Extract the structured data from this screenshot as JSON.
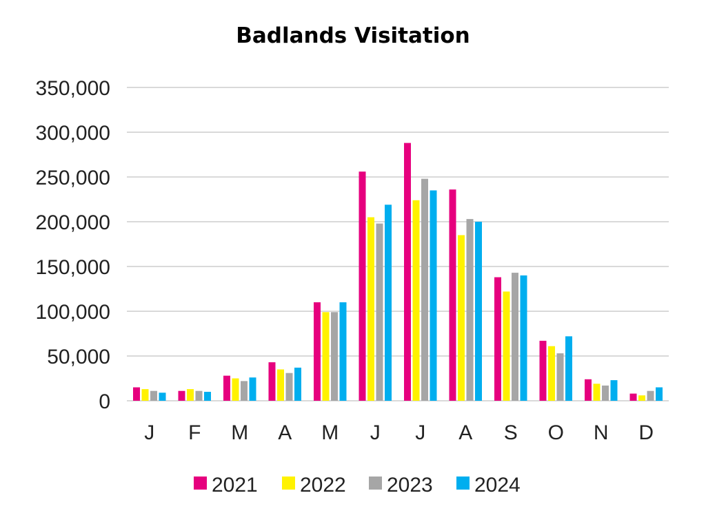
{
  "chart_data": {
    "type": "bar",
    "title": "Badlands Visitation",
    "xlabel": "",
    "ylabel": "",
    "categories": [
      "J",
      "F",
      "M",
      "A",
      "M",
      "J",
      "J",
      "A",
      "S",
      "O",
      "N",
      "D"
    ],
    "ylim": [
      0,
      350000
    ],
    "yticks": [
      0,
      50000,
      100000,
      150000,
      200000,
      250000,
      300000,
      350000
    ],
    "ytick_labels": [
      "0",
      "50,000",
      "100,000",
      "150,000",
      "200,000",
      "250,000",
      "300,000",
      "350,000"
    ],
    "grid": true,
    "legend_position": "bottom",
    "series": [
      {
        "name": "2021",
        "color": "#e6007e",
        "values": [
          15000,
          11000,
          28000,
          43000,
          110000,
          256000,
          288000,
          236000,
          138000,
          67000,
          24000,
          8000
        ]
      },
      {
        "name": "2022",
        "color": "#fff200",
        "values": [
          13000,
          13000,
          25000,
          35000,
          99000,
          205000,
          224000,
          185000,
          122000,
          61000,
          19000,
          6000
        ]
      },
      {
        "name": "2023",
        "color": "#a6a6a6",
        "values": [
          11000,
          11000,
          22000,
          31000,
          99000,
          198000,
          248000,
          203000,
          143000,
          53000,
          17000,
          11000
        ]
      },
      {
        "name": "2024",
        "color": "#00aeef",
        "values": [
          9000,
          10000,
          26000,
          37000,
          110000,
          219000,
          235000,
          200000,
          140000,
          72000,
          23000,
          15000
        ]
      }
    ]
  }
}
